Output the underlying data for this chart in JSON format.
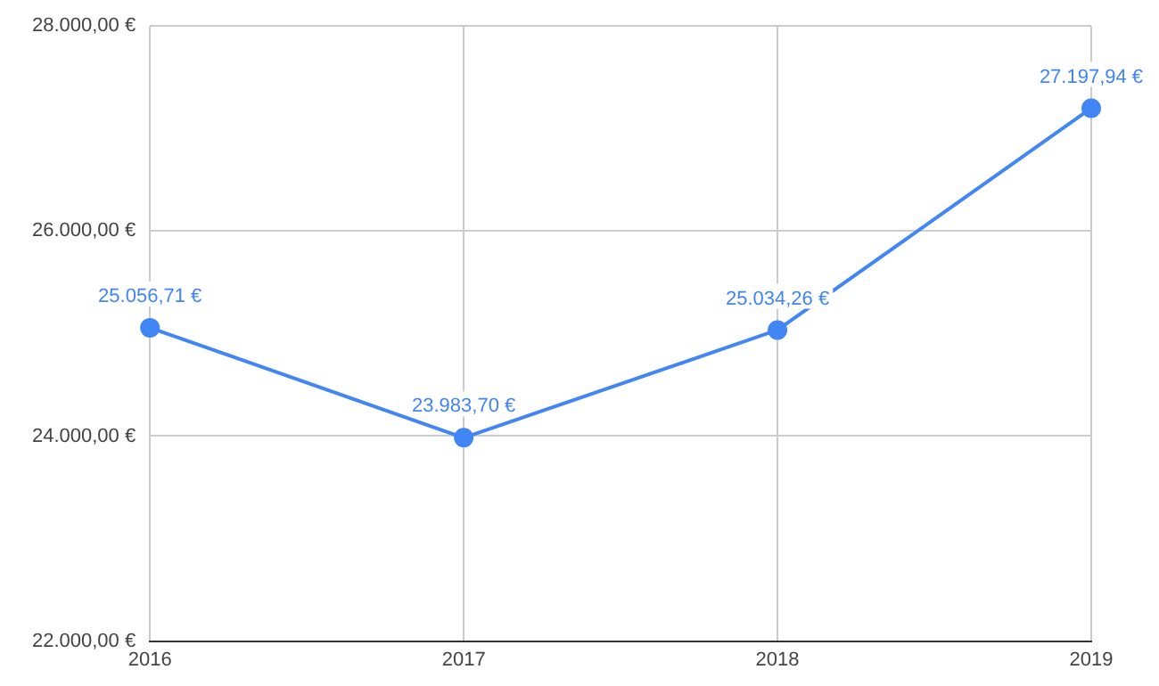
{
  "chart_data": {
    "type": "line",
    "categories": [
      "2016",
      "2017",
      "2018",
      "2019"
    ],
    "series": [
      {
        "color": "#4285f4",
        "values": [
          25056.71,
          23983.7,
          25034.26,
          27197.94
        ],
        "value_labels": [
          "25.056,71 €",
          "23.983,70 €",
          "25.034,26 €",
          "27.197,94 €"
        ]
      }
    ],
    "ylim": [
      22000,
      28000
    ],
    "yticks": [
      {
        "value": 22000,
        "label": "22.000,00 €"
      },
      {
        "value": 24000,
        "label": "24.000,00 €"
      },
      {
        "value": 26000,
        "label": "26.000,00 €"
      },
      {
        "value": 28000,
        "label": "28.000,00 €"
      }
    ],
    "grid": true,
    "legend": false,
    "marker": "circle",
    "line_style": "solid"
  }
}
